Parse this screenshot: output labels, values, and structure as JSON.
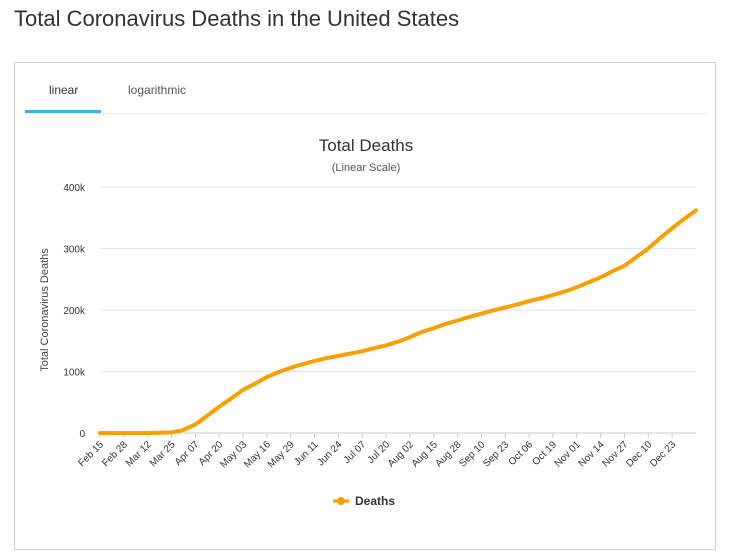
{
  "page": {
    "title": "Total Coronavirus Deaths in the United States"
  },
  "tabs": [
    {
      "label": "linear",
      "active": true
    },
    {
      "label": "logarithmic",
      "active": false
    }
  ],
  "colors": {
    "series": "#f7a000",
    "tab_underline": "#3cb2e4",
    "grid": "#e6e6e6"
  },
  "chart_data": {
    "type": "line",
    "title": "Total Deaths",
    "subtitle": "(Linear Scale)",
    "xlabel": "",
    "ylabel": "Total Coronavirus Deaths",
    "ylim": [
      0,
      400000
    ],
    "yticks": [
      0,
      100000,
      200000,
      300000,
      400000
    ],
    "ytick_labels": [
      "0",
      "100k",
      "200k",
      "300k",
      "400k"
    ],
    "x_tick_labels": [
      "Feb 15",
      "Feb 28",
      "Mar 12",
      "Mar 25",
      "Apr 07",
      "Apr 20",
      "May 03",
      "May 16",
      "May 29",
      "Jun 11",
      "Jun 24",
      "Jul 07",
      "Jul 20",
      "Aug 02",
      "Aug 15",
      "Aug 28",
      "Sep 10",
      "Sep 23",
      "Oct 06",
      "Oct 19",
      "Nov 01",
      "Nov 14",
      "Nov 27",
      "Dec 10",
      "Dec 23"
    ],
    "x_range": [
      "Feb 15",
      "Jan 05"
    ],
    "grid": true,
    "legend_position": "bottom-center",
    "series": [
      {
        "name": "Deaths",
        "x": [
          "Feb 15",
          "Mar 12",
          "Mar 25",
          "Mar 31",
          "Apr 07",
          "Apr 13",
          "Apr 20",
          "Apr 27",
          "May 03",
          "May 10",
          "May 16",
          "May 22",
          "May 29",
          "Jun 04",
          "Jun 11",
          "Jun 17",
          "Jun 24",
          "Jul 01",
          "Jul 07",
          "Jul 13",
          "Jul 20",
          "Jul 27",
          "Aug 02",
          "Aug 08",
          "Aug 15",
          "Aug 21",
          "Aug 28",
          "Sep 03",
          "Sep 10",
          "Sep 16",
          "Sep 23",
          "Sep 30",
          "Oct 06",
          "Oct 13",
          "Oct 19",
          "Oct 26",
          "Nov 01",
          "Nov 07",
          "Nov 14",
          "Nov 20",
          "Nov 27",
          "Dec 03",
          "Dec 10",
          "Dec 16",
          "Dec 23",
          "Dec 29",
          "Jan 05"
        ],
        "y": [
          0,
          50,
          1000,
          4500,
          14000,
          27000,
          43000,
          57000,
          70000,
          81000,
          91000,
          98500,
          106000,
          111500,
          117000,
          121500,
          125500,
          129500,
          133000,
          137500,
          142500,
          149000,
          156000,
          163500,
          170500,
          177000,
          183000,
          188500,
          194000,
          199000,
          204000,
          209500,
          214500,
          219500,
          224500,
          230500,
          237000,
          244500,
          253000,
          262500,
          272000,
          285000,
          300000,
          316000,
          333000,
          347000,
          362000
        ]
      }
    ]
  }
}
